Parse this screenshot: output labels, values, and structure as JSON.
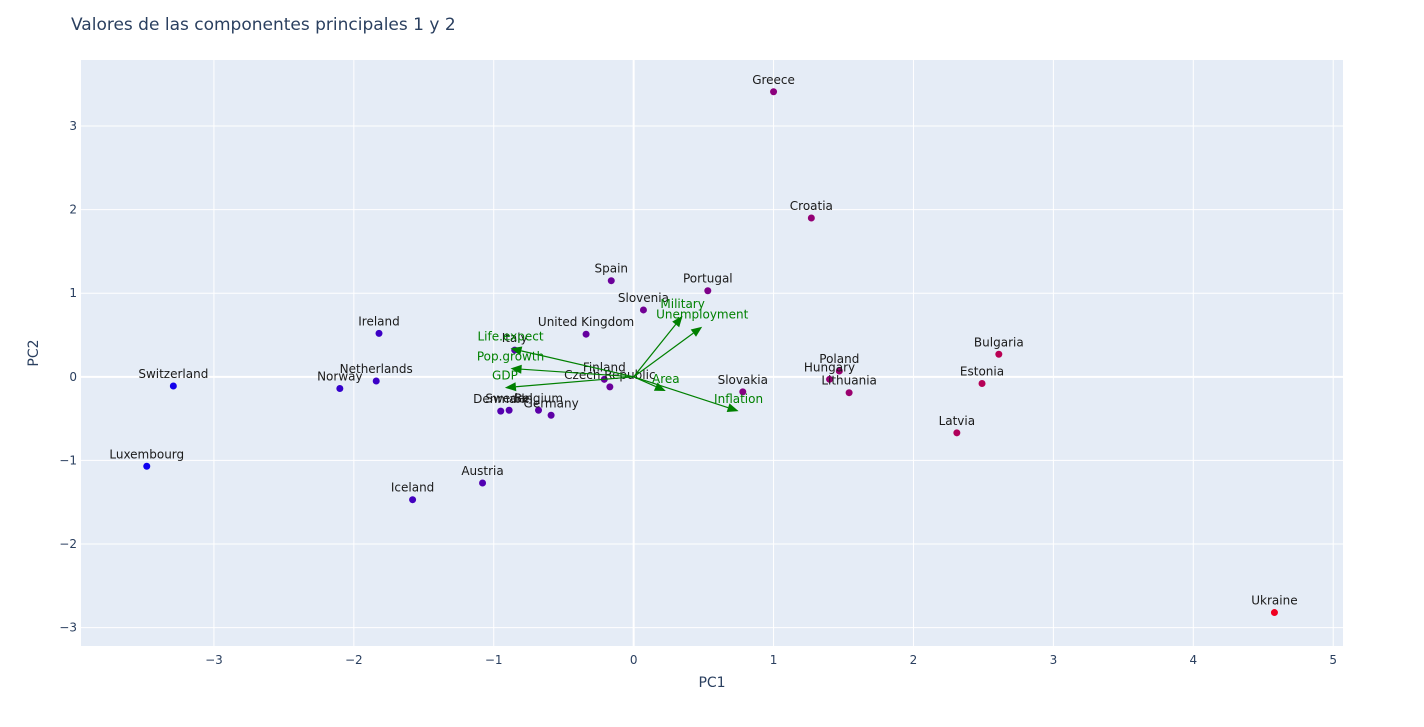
{
  "chart_data": {
    "type": "scatter",
    "title": "Valores de las componentes principales 1 y 2",
    "xlabel": "PC1",
    "ylabel": "PC2",
    "xlim": [
      -3.95,
      5.07
    ],
    "ylim": [
      -3.22,
      3.79
    ],
    "x_ticks": [
      -3,
      -2,
      -1,
      0,
      1,
      2,
      3,
      4,
      5
    ],
    "y_ticks": [
      -3,
      -2,
      -1,
      0,
      1,
      2,
      3
    ],
    "grid": true,
    "colors": {
      "background": "#e5ecf6",
      "grid": "#ffffff",
      "arrow": "#008000",
      "color_low": "#0d00f0",
      "color_high": "#f00020"
    },
    "points": [
      {
        "label": "Greece",
        "x": 1.0,
        "y": 3.41
      },
      {
        "label": "Croatia",
        "x": 1.27,
        "y": 1.9
      },
      {
        "label": "Spain",
        "x": -0.16,
        "y": 1.15
      },
      {
        "label": "Portugal",
        "x": 0.53,
        "y": 1.03
      },
      {
        "label": "Slovenia",
        "x": 0.07,
        "y": 0.8
      },
      {
        "label": "Ireland",
        "x": -1.82,
        "y": 0.52
      },
      {
        "label": "United Kingdom",
        "x": -0.34,
        "y": 0.51
      },
      {
        "label": "Italy",
        "x": -0.85,
        "y": 0.32
      },
      {
        "label": "Bulgaria",
        "x": 2.61,
        "y": 0.27
      },
      {
        "label": "Poland",
        "x": 1.47,
        "y": 0.07
      },
      {
        "label": "Hungary",
        "x": 1.4,
        "y": -0.03
      },
      {
        "label": "Finland",
        "x": -0.21,
        "y": -0.03
      },
      {
        "label": "Estonia",
        "x": 2.49,
        "y": -0.08
      },
      {
        "label": "Netherlands",
        "x": -1.84,
        "y": -0.05
      },
      {
        "label": "Switzerland",
        "x": -3.29,
        "y": -0.11
      },
      {
        "label": "Czech Republic",
        "x": -0.17,
        "y": -0.12
      },
      {
        "label": "Norway",
        "x": -2.1,
        "y": -0.14
      },
      {
        "label": "Slovakia",
        "x": 0.78,
        "y": -0.18
      },
      {
        "label": "Lithuania",
        "x": 1.54,
        "y": -0.19
      },
      {
        "label": "Denmark",
        "x": -0.95,
        "y": -0.41
      },
      {
        "label": "Sweden",
        "x": -0.89,
        "y": -0.4
      },
      {
        "label": "Belgium",
        "x": -0.68,
        "y": -0.4
      },
      {
        "label": "Germany",
        "x": -0.59,
        "y": -0.46
      },
      {
        "label": "Latvia",
        "x": 2.31,
        "y": -0.67
      },
      {
        "label": "Luxembourg",
        "x": -3.48,
        "y": -1.07
      },
      {
        "label": "Austria",
        "x": -1.08,
        "y": -1.27
      },
      {
        "label": "Iceland",
        "x": -1.58,
        "y": -1.47
      },
      {
        "label": "Ukraine",
        "x": 4.58,
        "y": -2.82
      }
    ],
    "loadings": [
      {
        "label": "Military",
        "x": 0.35,
        "y": 0.73
      },
      {
        "label": "Unemployment",
        "x": 0.49,
        "y": 0.6
      },
      {
        "label": "Life.expect",
        "x": -0.88,
        "y": 0.34
      },
      {
        "label": "Pop.growth",
        "x": -0.88,
        "y": 0.1
      },
      {
        "label": "GDP",
        "x": -0.92,
        "y": -0.13
      },
      {
        "label": "Area",
        "x": 0.23,
        "y": -0.17
      },
      {
        "label": "Inflation",
        "x": 0.75,
        "y": -0.41
      }
    ]
  }
}
